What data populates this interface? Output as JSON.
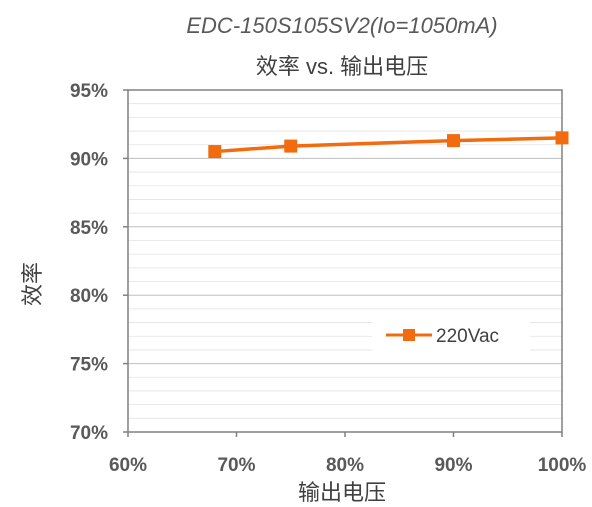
{
  "chart_data": {
    "type": "line",
    "title": "EDC-150S105SV2(Io=1050mA)",
    "subtitle": "效率 vs. 输出电压",
    "xlabel": "输出电压",
    "ylabel": "效率",
    "x_ticks": [
      "60%",
      "70%",
      "80%",
      "90%",
      "100%"
    ],
    "y_ticks": [
      "70%",
      "75%",
      "80%",
      "85%",
      "90%",
      "95%"
    ],
    "xlim": [
      60,
      100
    ],
    "ylim": [
      70,
      95
    ],
    "grid": true,
    "legend_position": "right",
    "series": [
      {
        "name": "220Vac",
        "color": "#f26b0f",
        "marker": "square",
        "x": [
          68,
          75,
          90,
          100
        ],
        "y": [
          90.5,
          90.9,
          91.3,
          91.5
        ]
      }
    ]
  }
}
